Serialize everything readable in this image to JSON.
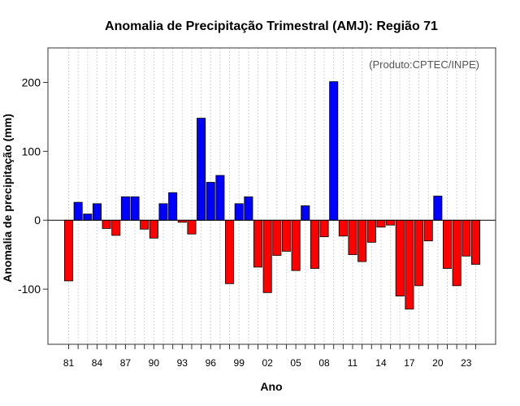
{
  "colors": {
    "positive": "#0000ff",
    "negative": "#ff0000",
    "grid": "#d3d3d3",
    "zero_line": "#000000"
  },
  "chart_data": {
    "type": "bar",
    "title": "Anomalia de Precipitação Trimestral (AMJ): Região 71",
    "xlabel": "Ano",
    "ylabel": "Anomalia de precipitação (mm)",
    "credit": "(Produto:CPTEC/INPE)",
    "ylim": [
      -180,
      250
    ],
    "yticks": [
      -100,
      0,
      100,
      200
    ],
    "grid": true,
    "categories": [
      "81",
      "82",
      "83",
      "84",
      "85",
      "86",
      "87",
      "88",
      "89",
      "90",
      "91",
      "92",
      "93",
      "94",
      "95",
      "96",
      "97",
      "98",
      "99",
      "00",
      "01",
      "02",
      "03",
      "04",
      "05",
      "06",
      "07",
      "08",
      "09",
      "10",
      "11",
      "12",
      "13",
      "14",
      "15",
      "16",
      "17",
      "18",
      "19",
      "20",
      "21",
      "22",
      "23",
      "24"
    ],
    "xtick_labels": [
      "81",
      "84",
      "87",
      "90",
      "93",
      "96",
      "99",
      "02",
      "05",
      "08",
      "11",
      "14",
      "17",
      "20",
      "23"
    ],
    "values": [
      -88,
      26,
      9,
      24,
      -12,
      -22,
      34,
      34,
      -13,
      -26,
      24,
      40,
      -3,
      -20,
      148,
      55,
      65,
      -92,
      24,
      34,
      -68,
      -105,
      -51,
      -45,
      -73,
      21,
      -70,
      -24,
      201,
      -23,
      -50,
      -60,
      -32,
      -10,
      -7,
      -110,
      -129,
      -95,
      -30,
      35,
      -70,
      -95,
      -52,
      -64
    ]
  }
}
